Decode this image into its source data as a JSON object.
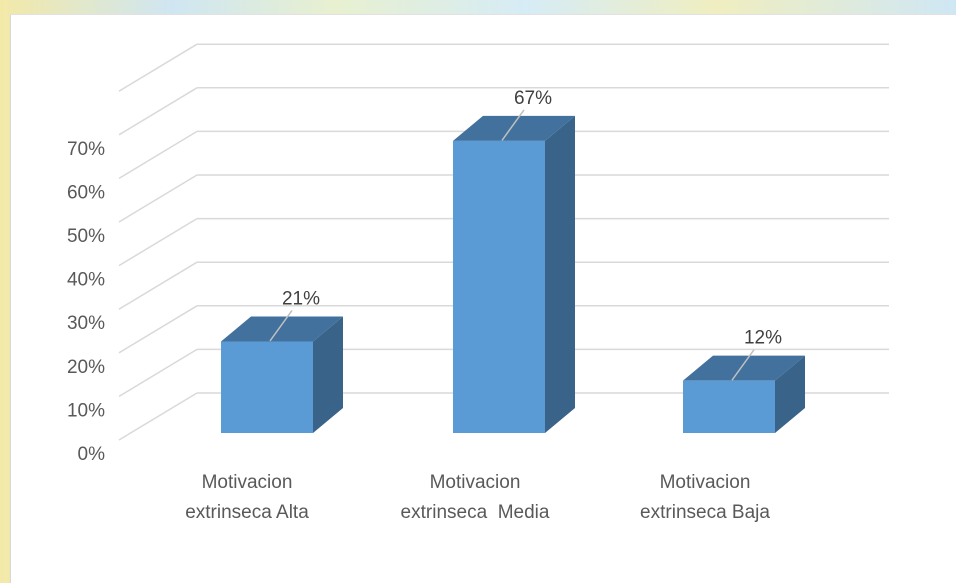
{
  "chart_data": {
    "type": "bar",
    "style": "3d-column",
    "categories": [
      [
        "Motivacion",
        "extrinseca Alta"
      ],
      [
        "Motivacion",
        "extrinseca  Media"
      ],
      [
        "Motivacion",
        "extrinseca Baja"
      ]
    ],
    "values": [
      21,
      67,
      12
    ],
    "data_labels": [
      "21%",
      "67%",
      "12%"
    ],
    "y_ticks": [
      "0%",
      "10%",
      "20%",
      "30%",
      "40%",
      "50%",
      "60%",
      "70%"
    ],
    "ylim": [
      0,
      70
    ],
    "grid": true,
    "legend": "none",
    "colors": {
      "front": "#5b9bd5",
      "top": "#41719c",
      "side": "#3a6389",
      "grid": "#d9d9d9",
      "text": "#595959"
    }
  }
}
